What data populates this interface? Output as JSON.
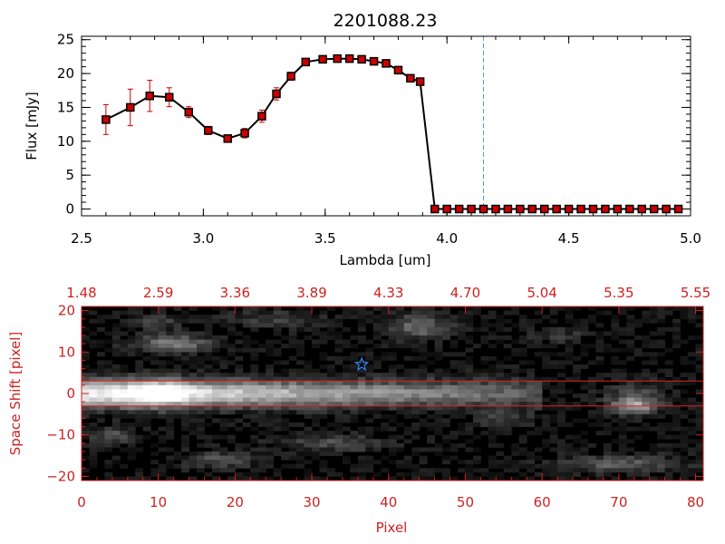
{
  "chart_data": [
    {
      "type": "line",
      "title": "2201088.23",
      "xlabel": "Lambda [um]",
      "ylabel": "Flux [mJy]",
      "xlim": [
        2.5,
        5.0
      ],
      "ylim": [
        -1,
        25.5
      ],
      "xticks": [
        2.5,
        3.0,
        3.5,
        4.0,
        4.5,
        5.0
      ],
      "xtick_labels": [
        "2.5",
        "3.0",
        "3.5",
        "4.0",
        "4.5",
        "5.0"
      ],
      "yticks": [
        0,
        5,
        10,
        15,
        20,
        25
      ],
      "ytick_labels": [
        "0",
        "5",
        "10",
        "15",
        "20",
        "25"
      ],
      "vline_x": 4.15,
      "colors": {
        "line": "#000000",
        "marker": "#cc0000",
        "errorbar": "#cc0000",
        "vline": "#4499ff"
      },
      "series": [
        {
          "x": [
            2.6,
            2.7,
            2.78,
            2.86,
            2.94,
            3.02,
            3.1,
            3.17,
            3.24,
            3.3,
            3.36,
            3.42,
            3.49,
            3.55,
            3.6,
            3.65,
            3.7,
            3.75,
            3.8,
            3.85,
            3.89,
            3.95,
            4.0,
            4.05,
            4.1,
            4.15,
            4.2,
            4.25,
            4.3,
            4.35,
            4.4,
            4.45,
            4.5,
            4.55,
            4.6,
            4.65,
            4.7,
            4.75,
            4.8,
            4.85,
            4.9,
            4.95
          ],
          "y": [
            13.2,
            15.0,
            16.7,
            16.5,
            14.3,
            11.6,
            10.4,
            11.2,
            13.7,
            17.0,
            19.6,
            21.7,
            22.1,
            22.2,
            22.2,
            22.1,
            21.8,
            21.5,
            20.5,
            19.3,
            18.8,
            0,
            0,
            0,
            0,
            0,
            0,
            0,
            0,
            0,
            0,
            0,
            0,
            0,
            0,
            0,
            0,
            0,
            0,
            0,
            0,
            0
          ],
          "yerr": [
            2.2,
            2.7,
            2.3,
            1.4,
            0.8,
            0.6,
            0.5,
            0.7,
            0.9,
            0.9,
            0.6,
            0.3,
            0.2,
            0.2,
            0.2,
            0.2,
            0.2,
            0.2,
            0.3,
            0.3,
            0.3,
            0,
            0,
            0,
            0,
            0,
            0,
            0,
            0,
            0,
            0,
            0,
            0,
            0,
            0,
            0,
            0,
            0,
            0,
            0,
            0,
            0
          ]
        }
      ]
    },
    {
      "type": "heatmap",
      "xlabel": "Pixel",
      "ylabel": "Space Shift [pixel]",
      "xlim": [
        0,
        81
      ],
      "ylim": [
        -21,
        21
      ],
      "xticks": [
        0,
        10,
        20,
        30,
        40,
        50,
        60,
        70,
        80
      ],
      "xtick_labels": [
        "0",
        "10",
        "20",
        "30",
        "40",
        "50",
        "60",
        "70",
        "80"
      ],
      "yticks": [
        -20,
        -10,
        0,
        10,
        20
      ],
      "ytick_labels": [
        "−20",
        "−10",
        "0",
        "10",
        "20"
      ],
      "top_axis_labels": [
        "1.48",
        "2.59",
        "3.36",
        "3.89",
        "4.33",
        "4.70",
        "5.04",
        "5.35",
        "5.55"
      ],
      "hlines_y": [
        3,
        -3
      ],
      "star": {
        "x": 36.5,
        "y": 7,
        "icon": "star-icon"
      },
      "colormap": "grayscale",
      "colors": {
        "axes": "#cc2222",
        "hline": "#dd2222",
        "star": "#3388ff"
      }
    }
  ]
}
